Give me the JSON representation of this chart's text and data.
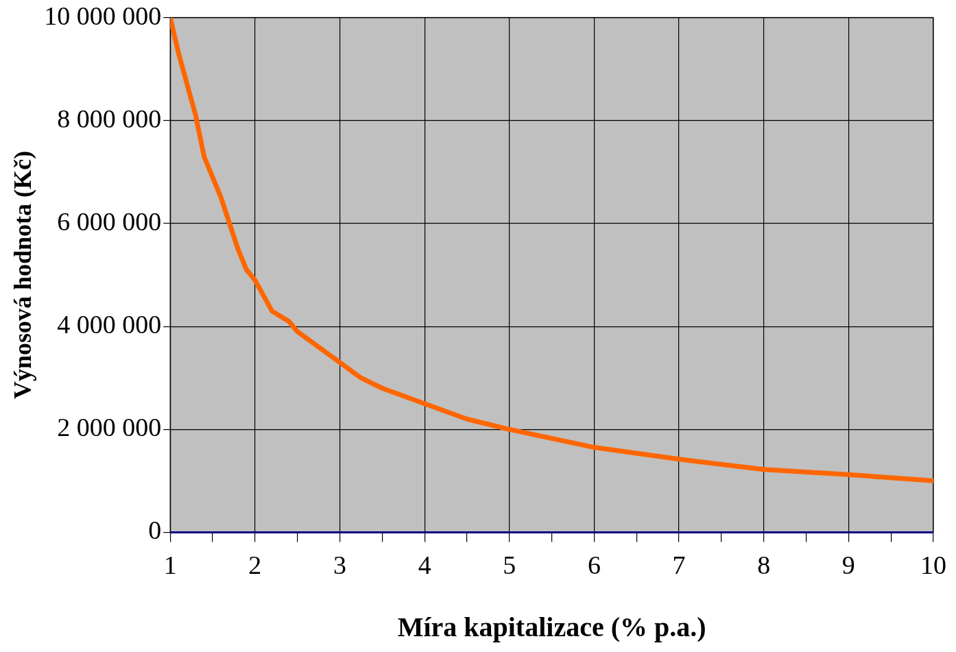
{
  "chart_data": {
    "type": "line",
    "xlabel": "Míra kapitalizace (% p.a.)",
    "ylabel": "Výnosová hodnota (Kč)",
    "series": [
      {
        "color": "#ff6600",
        "x": [
          1,
          1.1,
          1.2,
          1.3,
          1.4,
          1.6,
          1.7,
          1.8,
          1.9,
          2,
          2.1,
          2.2,
          2.4,
          2.5,
          2.75,
          3,
          3.25,
          3.5,
          4,
          4.5,
          5,
          6,
          7,
          8,
          9,
          10
        ],
        "values": [
          10000000,
          9300000,
          8700000,
          8100000,
          7300000,
          6500000,
          6000000,
          5500000,
          5100000,
          4900000,
          4600000,
          4300000,
          4100000,
          3900000,
          3600000,
          3300000,
          3000000,
          2800000,
          2500000,
          2200000,
          2000000,
          1650000,
          1420000,
          1220000,
          1120000,
          1000000
        ]
      }
    ],
    "xlim": [
      1,
      10
    ],
    "xticks": [
      1,
      {
        "value": 1.5,
        "label": null
      },
      2,
      {
        "value": 2.5,
        "label": null
      },
      3,
      {
        "value": 3.5,
        "label": null
      },
      4,
      {
        "value": 4.5,
        "label": null
      },
      5,
      {
        "value": 5.5,
        "label": null
      },
      6,
      {
        "value": 6.5,
        "label": null
      },
      7,
      {
        "value": 7.5,
        "label": null
      },
      8,
      {
        "value": 8.5,
        "label": null
      },
      9,
      {
        "value": 9.5,
        "label": null
      },
      10
    ],
    "ylim": [
      0,
      10000000
    ],
    "yticks": [
      0,
      {
        "value": 2000000,
        "label": "2 000 000"
      },
      {
        "value": 4000000,
        "label": "4 000 000"
      },
      {
        "value": 6000000,
        "label": "6 000 000"
      },
      {
        "value": 8000000,
        "label": "8 000 000"
      },
      {
        "value": 10000000,
        "label": "10 000 000"
      }
    ],
    "grid": true,
    "legend": false,
    "marker": "none",
    "line_style": "solid"
  }
}
